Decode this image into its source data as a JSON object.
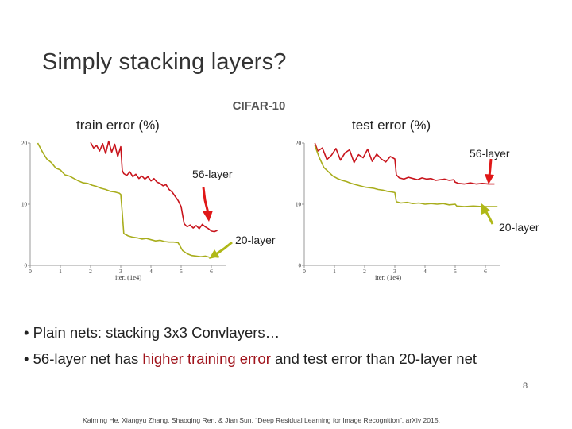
{
  "slide": {
    "title": "Simply stacking layers?",
    "bullets": [
      {
        "prefix": "• Plain nets: stacking 3x3 Convlayers…",
        "highlight": "",
        "suffix": ""
      },
      {
        "prefix": "• 56-layer net has ",
        "highlight": "higher training error",
        "suffix": " and test error than 20-layer net"
      }
    ],
    "page_number": "8",
    "citation": "Kaiming He, Xiangyu Zhang, Shaoqing Ren, & Jian Sun. “Deep Residual Learning for Image Recognition”. arXiv 2015.",
    "colors": {
      "layer56": "#c8141c",
      "layer20": "#a8ad1c",
      "arrow": "#e01818",
      "highlight": "#a0141c"
    }
  },
  "chart_data": [
    {
      "type": "line",
      "suptitle": "CIFAR-10",
      "title": "train error (%)",
      "xlabel": "iter. (1e4)",
      "xlim": [
        0,
        6.5
      ],
      "ylim": [
        0,
        20
      ],
      "xticks": [
        "0",
        "1",
        "2",
        "3",
        "4",
        "5",
        "6"
      ],
      "yticks": [
        "0",
        "10",
        "20"
      ],
      "series": [
        {
          "name": "56-layer",
          "color": "#c8141c",
          "x": [
            2.0,
            2.1,
            2.2,
            2.3,
            2.4,
            2.5,
            2.6,
            2.7,
            2.8,
            2.9,
            3.0,
            3.05,
            3.1,
            3.2,
            3.3,
            3.4,
            3.5,
            3.6,
            3.7,
            3.8,
            3.9,
            4.0,
            4.1,
            4.2,
            4.3,
            4.4,
            4.5,
            4.6,
            4.7,
            4.8,
            4.9,
            5.0,
            5.1,
            5.2,
            5.3,
            5.4,
            5.5,
            5.6,
            5.7,
            5.8,
            5.9,
            6.0,
            6.1,
            6.2
          ],
          "y": [
            20.1,
            19.2,
            19.6,
            18.7,
            19.9,
            18.3,
            20.3,
            18.5,
            19.8,
            17.8,
            19.4,
            15.5,
            15.0,
            14.7,
            15.3,
            14.5,
            14.9,
            14.2,
            14.6,
            14.1,
            14.5,
            13.8,
            14.2,
            13.6,
            13.4,
            13.0,
            13.2,
            12.4,
            12.0,
            11.3,
            10.6,
            9.6,
            6.8,
            6.3,
            6.6,
            6.1,
            6.5,
            6.0,
            6.7,
            6.3,
            6.0,
            5.6,
            5.5,
            5.7
          ]
        },
        {
          "name": "20-layer",
          "color": "#a8ad1c",
          "x": [
            0.25,
            0.4,
            0.55,
            0.7,
            0.85,
            1.0,
            1.15,
            1.3,
            1.45,
            1.6,
            1.75,
            1.9,
            2.05,
            2.2,
            2.35,
            2.5,
            2.65,
            2.8,
            2.95,
            3.0,
            3.05,
            3.1,
            3.25,
            3.4,
            3.55,
            3.7,
            3.85,
            4.0,
            4.15,
            4.3,
            4.45,
            4.6,
            4.75,
            4.9,
            5.05,
            5.2,
            5.35,
            5.5,
            5.65,
            5.8,
            5.95,
            6.1,
            6.25
          ],
          "y": [
            20.0,
            18.6,
            17.4,
            16.8,
            15.9,
            15.6,
            14.8,
            14.6,
            14.2,
            13.8,
            13.5,
            13.4,
            13.1,
            12.9,
            12.6,
            12.4,
            12.1,
            12.0,
            11.8,
            11.6,
            8.6,
            5.2,
            4.8,
            4.6,
            4.5,
            4.3,
            4.4,
            4.2,
            4.0,
            4.1,
            3.9,
            3.8,
            3.8,
            3.7,
            2.4,
            1.9,
            1.6,
            1.5,
            1.4,
            1.5,
            1.3,
            1.4,
            1.3
          ]
        }
      ],
      "annotations": [
        {
          "text": "56-layer",
          "color": "#222"
        },
        {
          "text": "20-layer",
          "color": "#222"
        }
      ]
    },
    {
      "type": "line",
      "title": "test error (%)",
      "xlabel": "iter. (1e4)",
      "xlim": [
        0,
        6.5
      ],
      "ylim": [
        0,
        20
      ],
      "xticks": [
        "0",
        "1",
        "2",
        "3",
        "4",
        "5",
        "6"
      ],
      "yticks": [
        "0",
        "10",
        "20"
      ],
      "series": [
        {
          "name": "56-layer",
          "color": "#c8141c",
          "x": [
            0.35,
            0.45,
            0.6,
            0.75,
            0.9,
            1.05,
            1.2,
            1.35,
            1.5,
            1.65,
            1.8,
            1.95,
            2.1,
            2.25,
            2.4,
            2.55,
            2.7,
            2.85,
            3.0,
            3.05,
            3.15,
            3.3,
            3.45,
            3.6,
            3.75,
            3.9,
            4.05,
            4.2,
            4.35,
            4.5,
            4.65,
            4.8,
            4.95,
            5.0,
            5.1,
            5.3,
            5.5,
            5.7,
            5.9,
            6.1,
            6.3
          ],
          "y": [
            20.0,
            18.7,
            19.2,
            17.3,
            18.0,
            19.1,
            17.2,
            18.4,
            18.9,
            16.8,
            18.1,
            17.6,
            19.0,
            17.0,
            18.2,
            17.4,
            16.9,
            17.8,
            17.4,
            14.8,
            14.3,
            14.1,
            14.4,
            14.2,
            14.0,
            14.3,
            14.1,
            14.2,
            13.9,
            14.0,
            14.1,
            13.9,
            14.0,
            13.6,
            13.4,
            13.3,
            13.5,
            13.3,
            13.4,
            13.3,
            13.3
          ]
        },
        {
          "name": "20-layer",
          "color": "#a8ad1c",
          "x": [
            0.35,
            0.5,
            0.65,
            0.8,
            0.95,
            1.1,
            1.25,
            1.4,
            1.55,
            1.7,
            1.85,
            2.0,
            2.15,
            2.3,
            2.45,
            2.6,
            2.75,
            2.9,
            3.0,
            3.05,
            3.2,
            3.4,
            3.6,
            3.8,
            4.0,
            4.2,
            4.4,
            4.6,
            4.8,
            5.0,
            5.05,
            5.3,
            5.6,
            5.9,
            6.2,
            6.4
          ],
          "y": [
            19.6,
            17.6,
            16.0,
            15.3,
            14.6,
            14.2,
            13.9,
            13.7,
            13.4,
            13.2,
            13.0,
            12.8,
            12.7,
            12.6,
            12.4,
            12.3,
            12.1,
            12.0,
            11.9,
            10.4,
            10.2,
            10.3,
            10.1,
            10.2,
            10.0,
            10.1,
            10.0,
            10.1,
            9.9,
            10.0,
            9.7,
            9.6,
            9.7,
            9.6,
            9.6,
            9.6
          ]
        }
      ],
      "annotations": [
        {
          "text": "56-layer",
          "color": "#222"
        },
        {
          "text": "20-layer",
          "color": "#222"
        }
      ]
    }
  ]
}
